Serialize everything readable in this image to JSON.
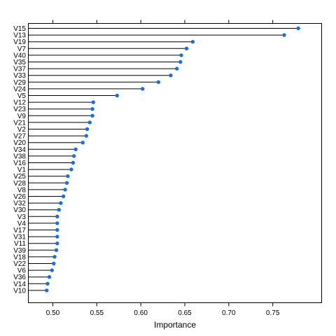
{
  "chart_data": {
    "type": "dotplot",
    "xlabel": "Importance",
    "ylabel": "",
    "title": "",
    "xlim": [
      0.47,
      0.8
    ],
    "xticks": [
      0.5,
      0.55,
      0.6,
      0.65,
      0.7,
      0.75
    ],
    "xtick_labels": [
      "0.50",
      "0.55",
      "0.60",
      "0.65",
      "0.70",
      "0.75"
    ],
    "grid": false,
    "categories": [
      "V15",
      "V13",
      "V19",
      "V7",
      "V40",
      "V35",
      "V37",
      "V33",
      "V29",
      "V24",
      "V5",
      "V12",
      "V23",
      "V9",
      "V21",
      "V2",
      "V27",
      "V20",
      "V34",
      "V38",
      "V16",
      "V1",
      "V25",
      "V28",
      "V8",
      "V26",
      "V32",
      "V30",
      "V3",
      "V4",
      "V17",
      "V31",
      "V11",
      "V39",
      "V18",
      "V22",
      "V6",
      "V36",
      "V14",
      "V10"
    ],
    "values": [
      0.779,
      0.763,
      0.659,
      0.652,
      0.646,
      0.645,
      0.641,
      0.634,
      0.62,
      0.602,
      0.573,
      0.546,
      0.545,
      0.545,
      0.542,
      0.539,
      0.538,
      0.534,
      0.526,
      0.524,
      0.523,
      0.521,
      0.517,
      0.516,
      0.514,
      0.512,
      0.509,
      0.507,
      0.505,
      0.505,
      0.505,
      0.505,
      0.505,
      0.504,
      0.502,
      0.501,
      0.499,
      0.496,
      0.494,
      0.493
    ],
    "colors": {
      "point": "#1a6fe0",
      "stem": "#000000",
      "frame": "#000000"
    }
  }
}
